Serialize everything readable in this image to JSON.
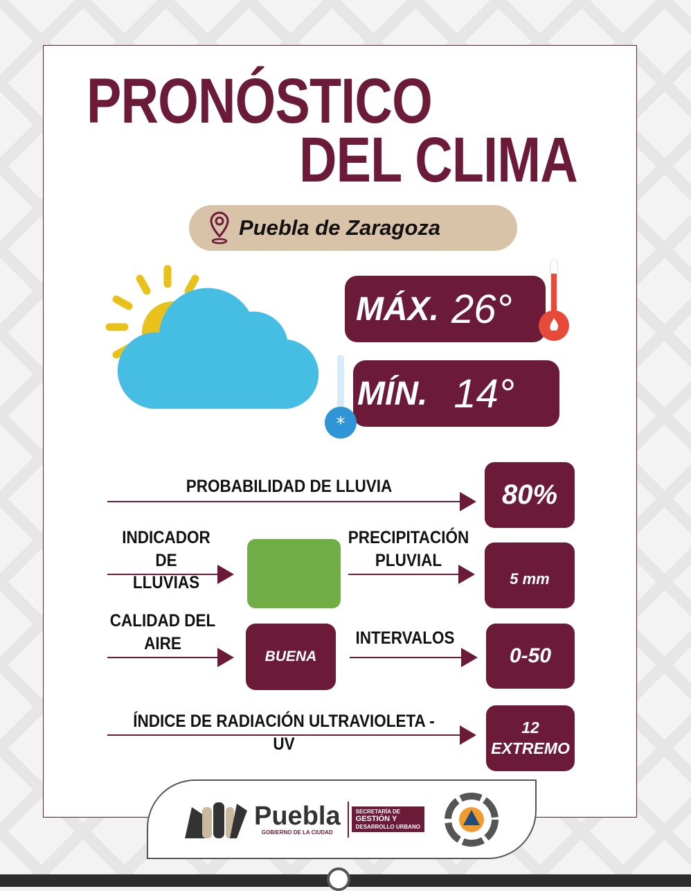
{
  "title": {
    "line1": "PRONÓSTICO",
    "line2": "DEL CLIMA"
  },
  "location": {
    "icon": "location-pin-icon",
    "name": "Puebla de Zaragoza"
  },
  "temperature": {
    "max_label": "MÁX.",
    "max_value": "26°",
    "min_label": "MÍN.",
    "min_value": "14°"
  },
  "weather_icon": "partly-cloudy-icon",
  "rain_probability": {
    "label": "PROBABILIDAD DE LLUVIA",
    "value": "80%"
  },
  "rain_indicator": {
    "label_line1": "INDICADOR DE",
    "label_line2": "LLUVIAS",
    "color": "#70ad47"
  },
  "precipitation": {
    "label_line1": "PRECIPITACIÓN",
    "label_line2": "PLUVIAL",
    "value": "5 mm"
  },
  "air_quality": {
    "label_line1": "CALIDAD DEL",
    "label_line2": "AIRE",
    "value": "BUENA"
  },
  "intervals": {
    "label": "INTERVALOS",
    "value": "0-50"
  },
  "uv": {
    "label": "ÍNDICE DE RADIACIÓN ULTRAVIOLETA - UV",
    "value": "12",
    "level": "EXTREMO"
  },
  "footer": {
    "brand": "Puebla",
    "brand_sub": "GOBIERNO DE LA CIUDAD",
    "sec_line1": "SECRETARÍA DE",
    "sec_line2": "GESTIÓN Y",
    "sec_line3": "DESARROLLO URBANO"
  },
  "colors": {
    "primary": "#6b1a37",
    "pill": "#d8c2a8",
    "cloud": "#46bde3",
    "sun": "#e8c21a"
  }
}
